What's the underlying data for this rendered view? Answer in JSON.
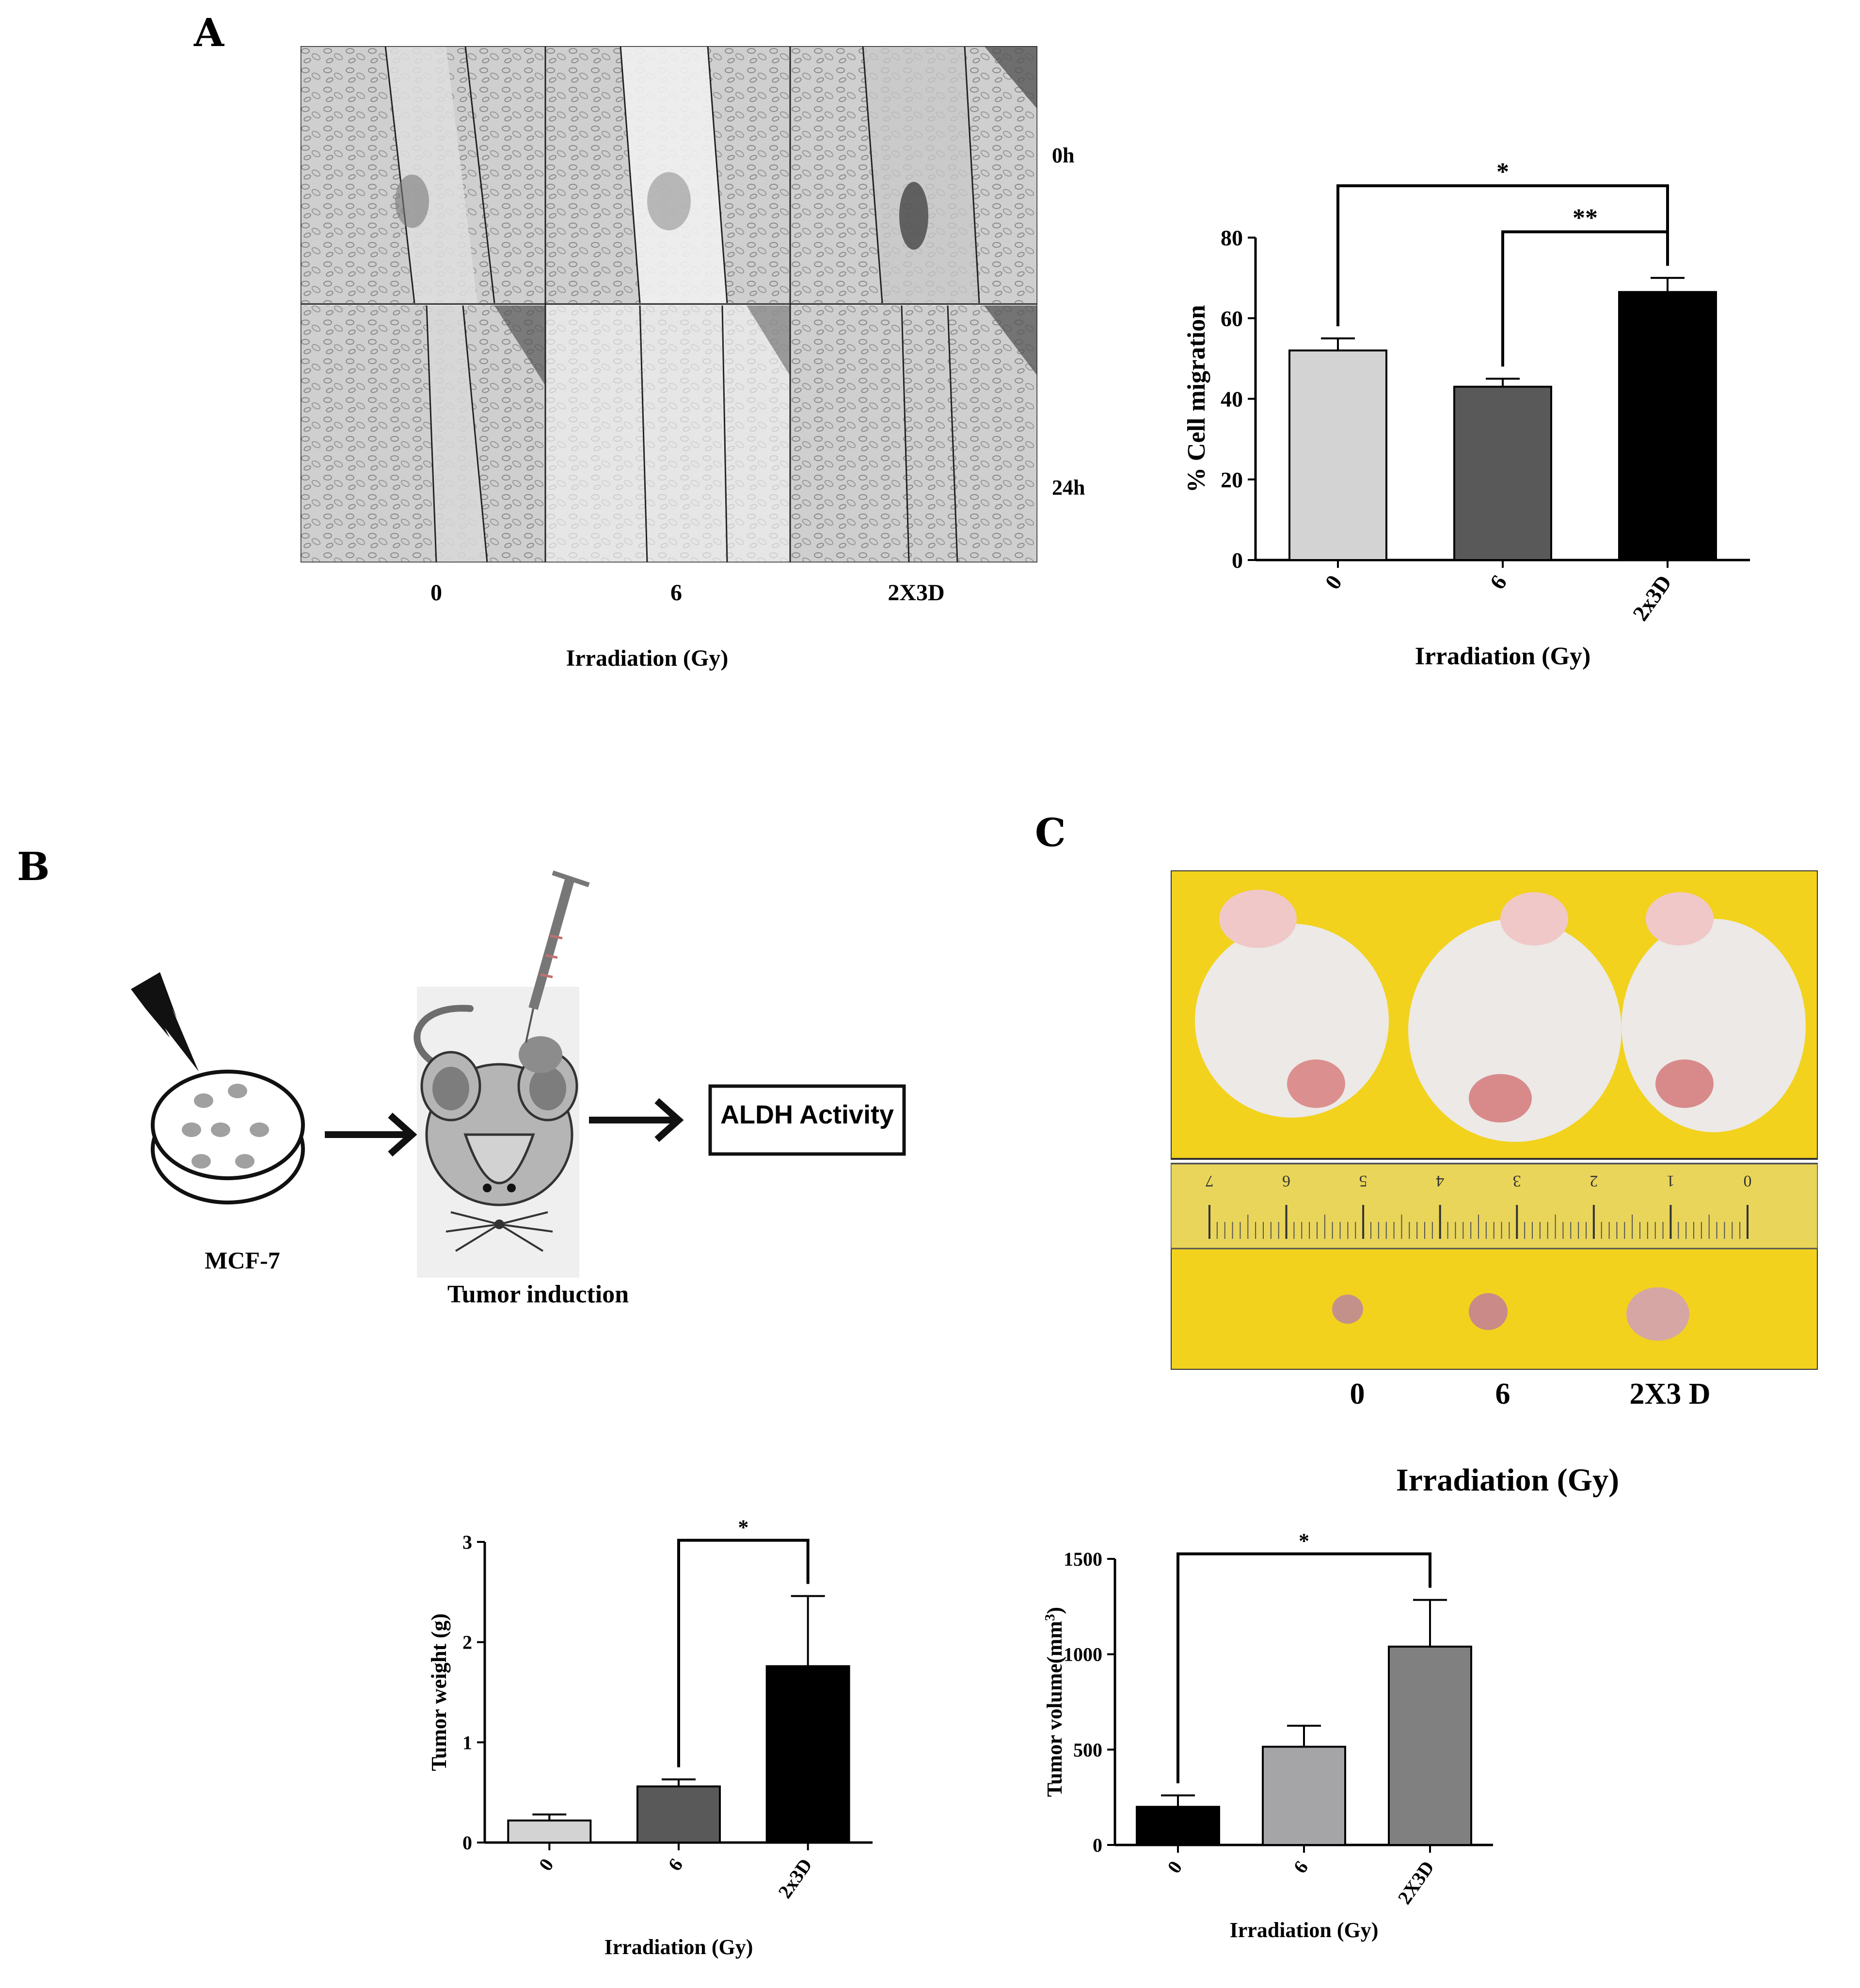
{
  "panels": {
    "A": {
      "label": "A",
      "row_labels": [
        "0h",
        "24h"
      ],
      "col_labels": [
        "0",
        "6",
        "2X3D"
      ],
      "xlabel": "Irradiation (Gy)"
    },
    "B": {
      "label": "B",
      "steps": [
        "MCF-7",
        "Tumor induction",
        "ALDH Activity"
      ]
    },
    "C": {
      "label": "C",
      "col_labels": [
        "0",
        "6",
        "2X3 D"
      ],
      "xlabel": "Irradiation (Gy)",
      "ruler_ticks": [
        "7",
        "6",
        "5",
        "4",
        "3",
        "2",
        "1",
        "0"
      ]
    }
  },
  "chart_data": [
    {
      "id": "migration",
      "type": "bar",
      "categories": [
        "0",
        "6",
        "2x3D"
      ],
      "values": [
        52,
        43,
        66.5
      ],
      "errors": [
        3,
        2,
        3.5
      ],
      "colors": [
        "#d3d3d3",
        "#595959",
        "#000000"
      ],
      "ylabel": "% Cell  migration",
      "xlabel": "Irradiation (Gy)",
      "ylim": [
        0,
        80
      ],
      "yticks": [
        "0",
        "20",
        "40",
        "60",
        "80"
      ],
      "significance": [
        {
          "from": "0",
          "to": "2x3D",
          "label": "*"
        },
        {
          "from": "6",
          "to": "2x3D",
          "label": "**"
        }
      ]
    },
    {
      "id": "tumor-weight",
      "type": "bar",
      "categories": [
        "0",
        "6",
        "2x3D"
      ],
      "values": [
        0.22,
        0.56,
        1.76
      ],
      "errors": [
        0.06,
        0.07,
        0.7
      ],
      "colors": [
        "#d3d3d3",
        "#595959",
        "#000000"
      ],
      "ylabel": "Tumor weight (g)",
      "xlabel": "Irradiation (Gy)",
      "ylim": [
        0,
        3
      ],
      "yticks": [
        "0",
        "1",
        "2",
        "3"
      ],
      "significance": [
        {
          "from": "6",
          "to": "2x3D",
          "label": "*"
        }
      ]
    },
    {
      "id": "tumor-volume",
      "type": "bar",
      "categories": [
        "0",
        "6",
        "2X3D"
      ],
      "values": [
        200,
        515,
        1040
      ],
      "errors": [
        60,
        110,
        245
      ],
      "colors": [
        "#000000",
        "#a5a5a8",
        "#808080"
      ],
      "ylabel": "Tumor volume(mm",
      "ylabel_superscript": "3",
      "ylabel_close": ")",
      "xlabel": "Irradiation (Gy)",
      "ylim": [
        0,
        1500
      ],
      "yticks": [
        "0",
        "500",
        "1000",
        "1500"
      ],
      "significance": [
        {
          "from": "0",
          "to": "2X3D",
          "label": "*"
        }
      ]
    }
  ]
}
